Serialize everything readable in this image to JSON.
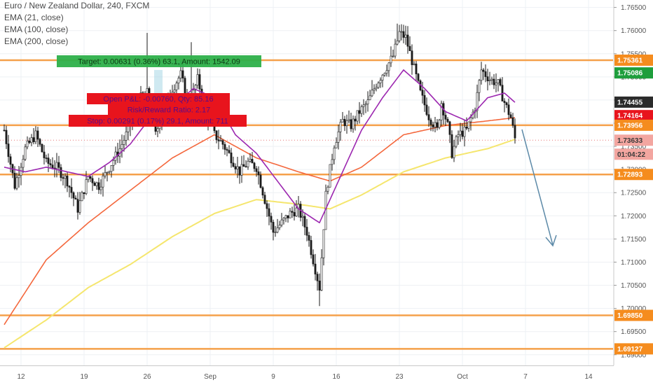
{
  "legend": {
    "title": "Euro / New Zealand Dollar, 240, FXCM",
    "ema21": "EMA (21, close)",
    "ema100": "EMA (100, close)",
    "ema200": "EMA (200, close)"
  },
  "position": {
    "target_text": "Target: 0.00631 (0.36%) 63.1, Amount: 1542.09",
    "open_pnl_text": "Open P&L: -0.00760, Qty: 85.16",
    "risk_reward_text": "Risk/Reward Ratio: 2.17",
    "stop_text": "Stop: 0.00291 (0.17%) 29.1, Amount: 711"
  },
  "colors": {
    "background": "#ffffff",
    "grid": "#eef0f4",
    "candle": "#1a1a1a",
    "level_line": "#f5a04a",
    "ema21": "#9c27b0",
    "ema100": "#f4673c",
    "ema200": "#f5e66e",
    "target_box": "#2db04a",
    "stop_box": "#e8141d",
    "arrow": "#5d8aa8",
    "shade": "#9fd3e3"
  },
  "chart_data": {
    "type": "candlestick",
    "symbol": "EUR/NZD",
    "timeframe": "240",
    "ylim": [
      1.688,
      1.766
    ],
    "y_ticks": [
      "1.76500",
      "1.76000",
      "1.75500",
      "1.75000",
      "1.74500",
      "1.74000",
      "1.73500",
      "1.73000",
      "1.72500",
      "1.72000",
      "1.71500",
      "1.71000",
      "1.70500",
      "1.70000",
      "1.69500",
      "1.69000"
    ],
    "y_tick_values": [
      1.765,
      1.76,
      1.755,
      1.75,
      1.745,
      1.74,
      1.735,
      1.73,
      1.725,
      1.72,
      1.715,
      1.71,
      1.705,
      1.7,
      1.695,
      1.69
    ],
    "x_ticks": [
      {
        "label": "12",
        "bar": 8
      },
      {
        "label": "19",
        "bar": 38
      },
      {
        "label": "26",
        "bar": 68
      },
      {
        "label": "Sep",
        "bar": 98
      },
      {
        "label": "9",
        "bar": 128
      },
      {
        "label": "16",
        "bar": 158
      },
      {
        "label": "23",
        "bar": 188
      },
      {
        "label": "Oct",
        "bar": 218
      },
      {
        "label": "7",
        "bar": 248
      },
      {
        "label": "14",
        "bar": 278
      }
    ],
    "horizontal_levels": [
      1.75361,
      1.73956,
      1.72893,
      1.6985,
      1.69127
    ],
    "price_tags": [
      {
        "label": "1.76500",
        "value": 1.765,
        "kind": "axis"
      },
      {
        "label": "1.75361",
        "value": 1.75361,
        "kind": "level"
      },
      {
        "label": "1.75086",
        "value": 1.75086,
        "kind": "target"
      },
      {
        "label": "1.74455",
        "value": 1.74455,
        "kind": "entry"
      },
      {
        "label": "1.74164",
        "value": 1.74164,
        "kind": "stop"
      },
      {
        "label": "1.73956",
        "value": 1.73956,
        "kind": "level"
      },
      {
        "label": "1.73633",
        "value": 1.73633,
        "kind": "last"
      },
      {
        "label": "01:04:22",
        "value": 1.7333,
        "kind": "timer"
      },
      {
        "label": "1.72893",
        "value": 1.72893,
        "kind": "level"
      },
      {
        "label": "1.69850",
        "value": 1.6985,
        "kind": "level"
      },
      {
        "label": "1.69127",
        "value": 1.69127,
        "kind": "level"
      }
    ],
    "price_path": [
      [
        0,
        1.7385
      ],
      [
        5,
        1.7265
      ],
      [
        10,
        1.7345
      ],
      [
        15,
        1.7375
      ],
      [
        20,
        1.7315
      ],
      [
        25,
        1.7305
      ],
      [
        30,
        1.7275
      ],
      [
        35,
        1.7215
      ],
      [
        40,
        1.7285
      ],
      [
        45,
        1.7265
      ],
      [
        50,
        1.7305
      ],
      [
        55,
        1.7345
      ],
      [
        60,
        1.7395
      ],
      [
        65,
        1.7455
      ],
      [
        68,
        1.7465
      ],
      [
        72,
        1.7375
      ],
      [
        76,
        1.7435
      ],
      [
        80,
        1.7475
      ],
      [
        84,
        1.7505
      ],
      [
        88,
        1.7435
      ],
      [
        92,
        1.7495
      ],
      [
        96,
        1.7425
      ],
      [
        100,
        1.7375
      ],
      [
        104,
        1.7355
      ],
      [
        108,
        1.7325
      ],
      [
        112,
        1.7295
      ],
      [
        116,
        1.7315
      ],
      [
        120,
        1.7305
      ],
      [
        124,
        1.7235
      ],
      [
        128,
        1.7165
      ],
      [
        132,
        1.7185
      ],
      [
        136,
        1.7205
      ],
      [
        140,
        1.7215
      ],
      [
        144,
        1.7165
      ],
      [
        148,
        1.7085
      ],
      [
        150,
        1.7045
      ],
      [
        153,
        1.7245
      ],
      [
        157,
        1.7355
      ],
      [
        161,
        1.7405
      ],
      [
        165,
        1.7395
      ],
      [
        169,
        1.7425
      ],
      [
        173,
        1.7445
      ],
      [
        177,
        1.7485
      ],
      [
        181,
        1.7515
      ],
      [
        185,
        1.7545
      ],
      [
        188,
        1.7595
      ],
      [
        191,
        1.7585
      ],
      [
        194,
        1.7535
      ],
      [
        198,
        1.7465
      ],
      [
        202,
        1.7415
      ],
      [
        206,
        1.7385
      ],
      [
        208,
        1.7445
      ],
      [
        211,
        1.7395
      ],
      [
        213,
        1.7335
      ],
      [
        216,
        1.7375
      ],
      [
        220,
        1.7385
      ],
      [
        224,
        1.7435
      ],
      [
        227,
        1.7515
      ],
      [
        231,
        1.7495
      ],
      [
        235,
        1.7485
      ],
      [
        238,
        1.7445
      ],
      [
        241,
        1.7412
      ],
      [
        243,
        1.7367
      ]
    ],
    "ema21": [
      [
        0,
        1.7305
      ],
      [
        10,
        1.7295
      ],
      [
        20,
        1.7305
      ],
      [
        30,
        1.7295
      ],
      [
        40,
        1.7285
      ],
      [
        50,
        1.7315
      ],
      [
        60,
        1.7355
      ],
      [
        70,
        1.7415
      ],
      [
        80,
        1.7435
      ],
      [
        90,
        1.7475
      ],
      [
        100,
        1.7455
      ],
      [
        110,
        1.7375
      ],
      [
        120,
        1.7335
      ],
      [
        130,
        1.7275
      ],
      [
        140,
        1.7215
      ],
      [
        150,
        1.7185
      ],
      [
        160,
        1.7285
      ],
      [
        170,
        1.7385
      ],
      [
        180,
        1.7455
      ],
      [
        190,
        1.7515
      ],
      [
        200,
        1.7475
      ],
      [
        210,
        1.7425
      ],
      [
        220,
        1.7405
      ],
      [
        230,
        1.7455
      ],
      [
        238,
        1.7465
      ],
      [
        243,
        1.7445
      ]
    ],
    "ema100": [
      [
        0,
        1.6965
      ],
      [
        20,
        1.7105
      ],
      [
        40,
        1.7185
      ],
      [
        60,
        1.7255
      ],
      [
        80,
        1.7325
      ],
      [
        100,
        1.7375
      ],
      [
        120,
        1.7325
      ],
      [
        140,
        1.7295
      ],
      [
        155,
        1.7275
      ],
      [
        170,
        1.7305
      ],
      [
        190,
        1.7375
      ],
      [
        210,
        1.7395
      ],
      [
        230,
        1.7405
      ],
      [
        243,
        1.7412
      ]
    ],
    "ema200": [
      [
        0,
        1.6915
      ],
      [
        20,
        1.6975
      ],
      [
        40,
        1.7045
      ],
      [
        60,
        1.7095
      ],
      [
        80,
        1.7155
      ],
      [
        100,
        1.7205
      ],
      [
        120,
        1.7235
      ],
      [
        140,
        1.7225
      ],
      [
        155,
        1.7215
      ],
      [
        170,
        1.7245
      ],
      [
        190,
        1.7295
      ],
      [
        210,
        1.7325
      ],
      [
        230,
        1.7345
      ],
      [
        243,
        1.7365
      ]
    ]
  }
}
